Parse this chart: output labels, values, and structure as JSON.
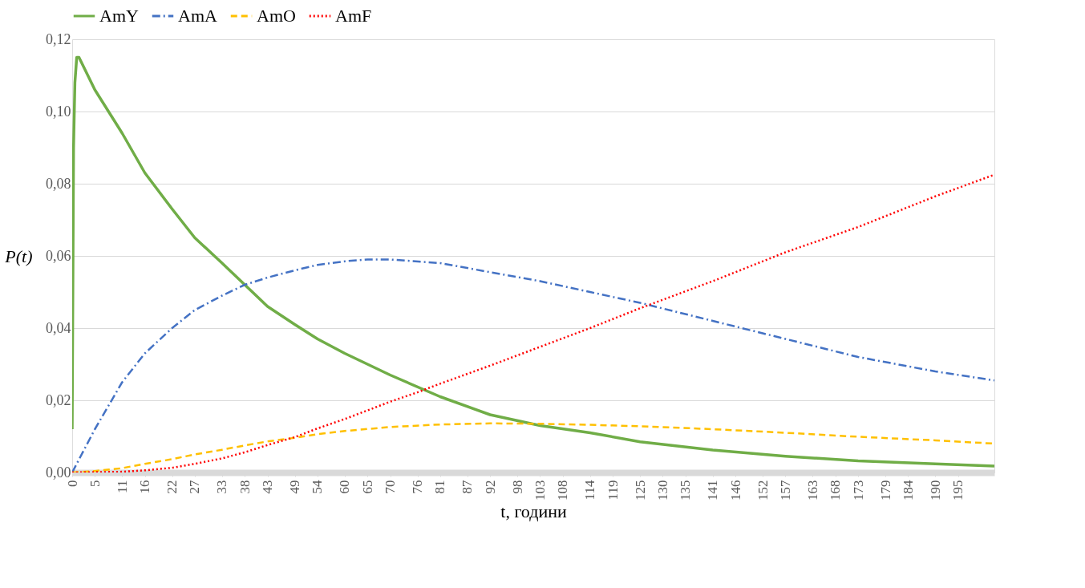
{
  "chart_data": {
    "type": "line",
    "xlabel": "t, години",
    "ylabel": "P(t)",
    "xlim": [
      0,
      203
    ],
    "xticks": [
      0,
      5,
      11,
      16,
      22,
      27,
      33,
      38,
      43,
      49,
      54,
      60,
      65,
      70,
      76,
      81,
      87,
      92,
      98,
      103,
      108,
      114,
      119,
      125,
      130,
      135,
      141,
      146,
      152,
      157,
      163,
      168,
      173,
      179,
      184,
      190,
      195
    ],
    "ylim": [
      0,
      0.12
    ],
    "yticks": [
      {
        "value": 0,
        "label": "0,00"
      },
      {
        "value": 0.02,
        "label": "0,02"
      },
      {
        "value": 0.04,
        "label": "0,04"
      },
      {
        "value": 0.06,
        "label": "0,06"
      },
      {
        "value": 0.08,
        "label": "0,08"
      },
      {
        "value": 0.1,
        "label": "0,10"
      },
      {
        "value": 0.12,
        "label": "0,12"
      }
    ],
    "grid": "y",
    "legend": "top",
    "series": [
      {
        "name": "AmY",
        "color": "#70ad47",
        "line_style": "solid",
        "x": [
          0,
          0.3,
          0.6,
          1,
          1.5,
          5,
          11,
          16,
          22,
          27,
          33,
          38,
          43,
          49,
          54,
          60,
          70,
          81,
          92,
          103,
          114,
          125,
          141,
          157,
          173,
          190,
          203
        ],
        "values": [
          0.012,
          0.09,
          0.108,
          0.115,
          0.115,
          0.106,
          0.094,
          0.083,
          0.073,
          0.065,
          0.058,
          0.052,
          0.046,
          0.041,
          0.037,
          0.033,
          0.027,
          0.021,
          0.016,
          0.013,
          0.011,
          0.0085,
          0.0062,
          0.0045,
          0.0032,
          0.0024,
          0.0018
        ]
      },
      {
        "name": "AmA",
        "color": "#4472c4",
        "line_style": "dashdot",
        "x": [
          0,
          5,
          11,
          16,
          22,
          27,
          33,
          38,
          43,
          49,
          54,
          60,
          65,
          70,
          81,
          92,
          103,
          114,
          125,
          141,
          157,
          173,
          190,
          203
        ],
        "values": [
          0,
          0.012,
          0.025,
          0.033,
          0.04,
          0.045,
          0.049,
          0.052,
          0.054,
          0.056,
          0.0575,
          0.0585,
          0.059,
          0.059,
          0.058,
          0.0555,
          0.053,
          0.05,
          0.047,
          0.042,
          0.037,
          0.032,
          0.028,
          0.0255
        ]
      },
      {
        "name": "AmO",
        "color": "#ffc000",
        "line_style": "dashed",
        "x": [
          0,
          5,
          11,
          16,
          22,
          27,
          33,
          38,
          43,
          49,
          54,
          60,
          70,
          81,
          92,
          103,
          114,
          125,
          141,
          157,
          173,
          190,
          203
        ],
        "values": [
          0,
          0.0004,
          0.0012,
          0.0024,
          0.0037,
          0.005,
          0.0063,
          0.0075,
          0.0086,
          0.0096,
          0.0106,
          0.0115,
          0.0126,
          0.0133,
          0.0136,
          0.0135,
          0.0132,
          0.0128,
          0.012,
          0.011,
          0.0099,
          0.0089,
          0.008
        ]
      },
      {
        "name": "AmF",
        "color": "#ff0000",
        "line_style": "dotted",
        "x": [
          0,
          11,
          16,
          22,
          27,
          33,
          38,
          43,
          49,
          54,
          60,
          65,
          70,
          76,
          81,
          92,
          103,
          114,
          125,
          141,
          157,
          173,
          190,
          203
        ],
        "values": [
          0,
          0.0002,
          0.0006,
          0.0013,
          0.0024,
          0.0039,
          0.0056,
          0.0076,
          0.0098,
          0.0122,
          0.0148,
          0.0172,
          0.0196,
          0.0222,
          0.0246,
          0.0296,
          0.0348,
          0.04,
          0.0455,
          0.053,
          0.061,
          0.068,
          0.0765,
          0.0825
        ]
      }
    ]
  }
}
